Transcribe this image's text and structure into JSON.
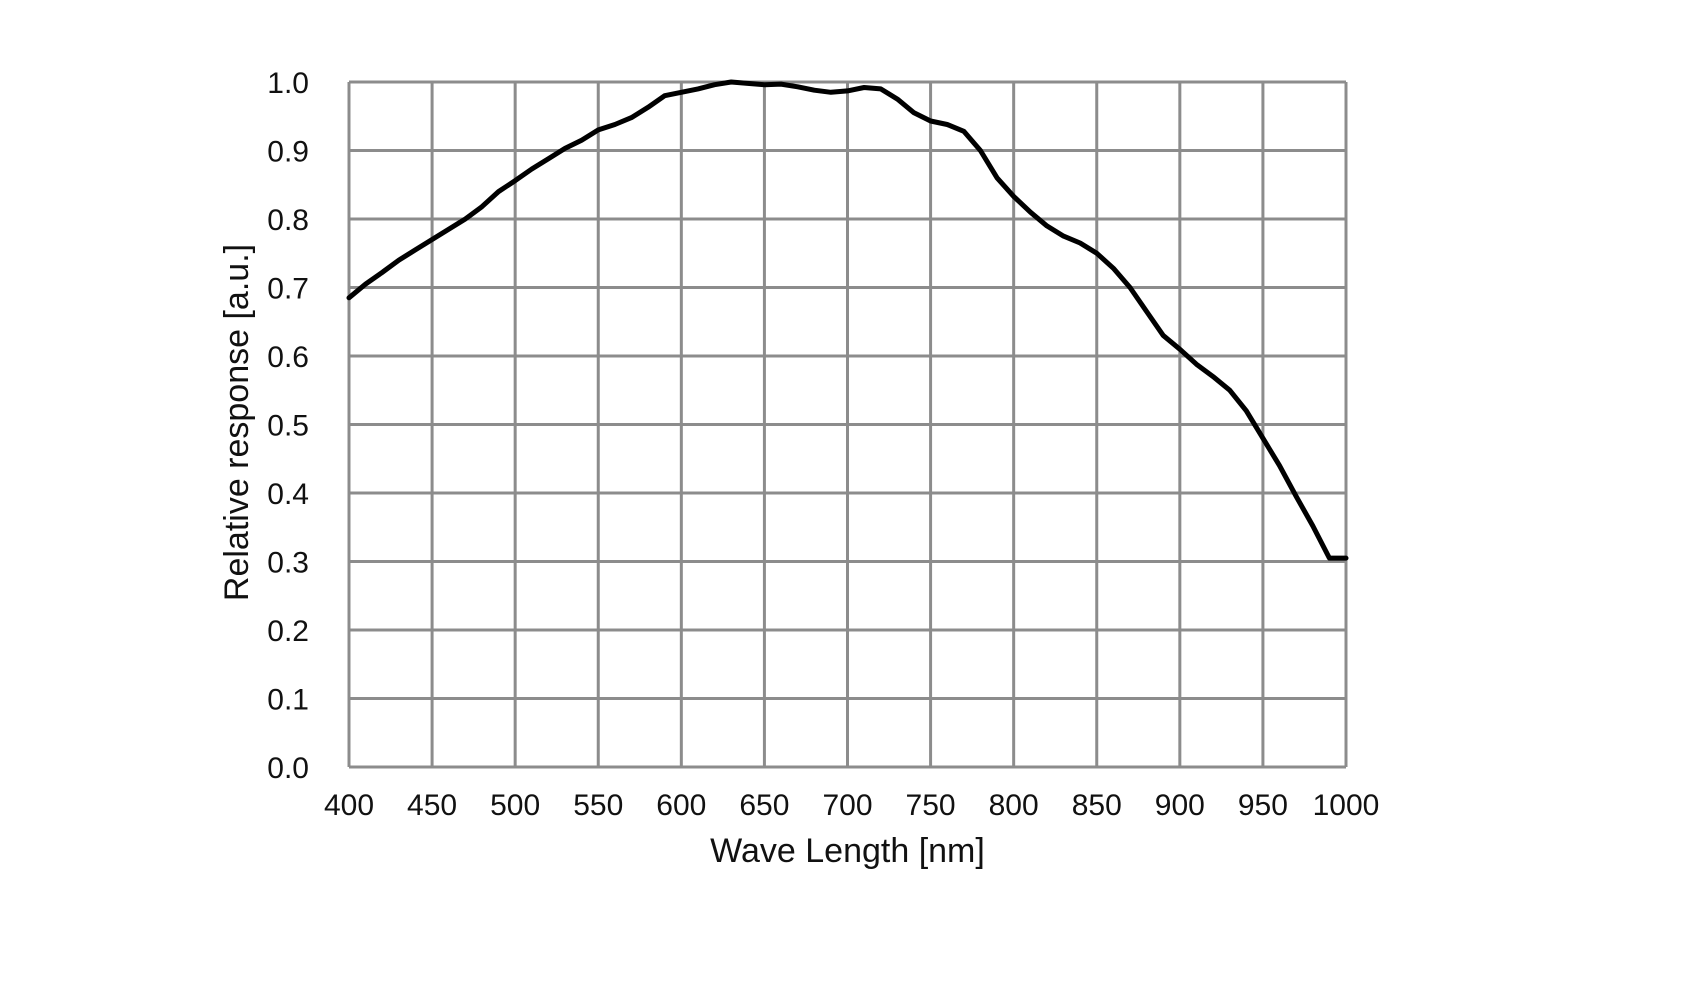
{
  "chart_data": {
    "type": "line",
    "title": "",
    "xlabel": "Wave Length [nm]",
    "ylabel": "Relative response [a.u.]",
    "xlim": [
      400,
      1000
    ],
    "ylim": [
      0.0,
      1.0
    ],
    "x_ticks": [
      400,
      450,
      500,
      550,
      600,
      650,
      700,
      750,
      800,
      850,
      900,
      950,
      1000
    ],
    "x_tick_labels": [
      "400",
      "450",
      "500",
      "550",
      "600",
      "650",
      "700",
      "750",
      "800",
      "850",
      "900",
      "950",
      "1000"
    ],
    "y_ticks": [
      0.0,
      0.1,
      0.2,
      0.3,
      0.4,
      0.5,
      0.6,
      0.7,
      0.8,
      0.9,
      1.0
    ],
    "y_tick_labels": [
      "0.0",
      "0.1",
      "0.2",
      "0.3",
      "0.4",
      "0.5",
      "0.6",
      "0.7",
      "0.8",
      "0.9",
      "1.0"
    ],
    "grid": true,
    "legend": "none",
    "line_color": "#000000",
    "grid_color": "#8c8c8c",
    "series": [
      {
        "name": "Relative response",
        "x": [
          400,
          410,
          420,
          430,
          440,
          450,
          460,
          470,
          480,
          490,
          500,
          510,
          520,
          530,
          540,
          550,
          560,
          570,
          580,
          590,
          600,
          610,
          620,
          630,
          640,
          650,
          660,
          670,
          680,
          690,
          700,
          710,
          720,
          730,
          740,
          750,
          760,
          770,
          780,
          790,
          800,
          810,
          820,
          830,
          840,
          850,
          860,
          870,
          880,
          890,
          900,
          910,
          920,
          930,
          940,
          950,
          960,
          970,
          980,
          990,
          1000
        ],
        "y": [
          0.685,
          0.705,
          0.722,
          0.74,
          0.755,
          0.77,
          0.785,
          0.8,
          0.818,
          0.84,
          0.856,
          0.873,
          0.888,
          0.903,
          0.915,
          0.93,
          0.938,
          0.948,
          0.963,
          0.98,
          0.985,
          0.99,
          0.996,
          1.0,
          0.998,
          0.996,
          0.997,
          0.993,
          0.988,
          0.985,
          0.987,
          0.992,
          0.99,
          0.975,
          0.955,
          0.943,
          0.938,
          0.928,
          0.9,
          0.86,
          0.833,
          0.81,
          0.79,
          0.775,
          0.765,
          0.75,
          0.728,
          0.7,
          0.665,
          0.63,
          0.61,
          0.588,
          0.57,
          0.55,
          0.52,
          0.48,
          0.44,
          0.395,
          0.352,
          0.305,
          0.305
        ]
      }
    ]
  }
}
